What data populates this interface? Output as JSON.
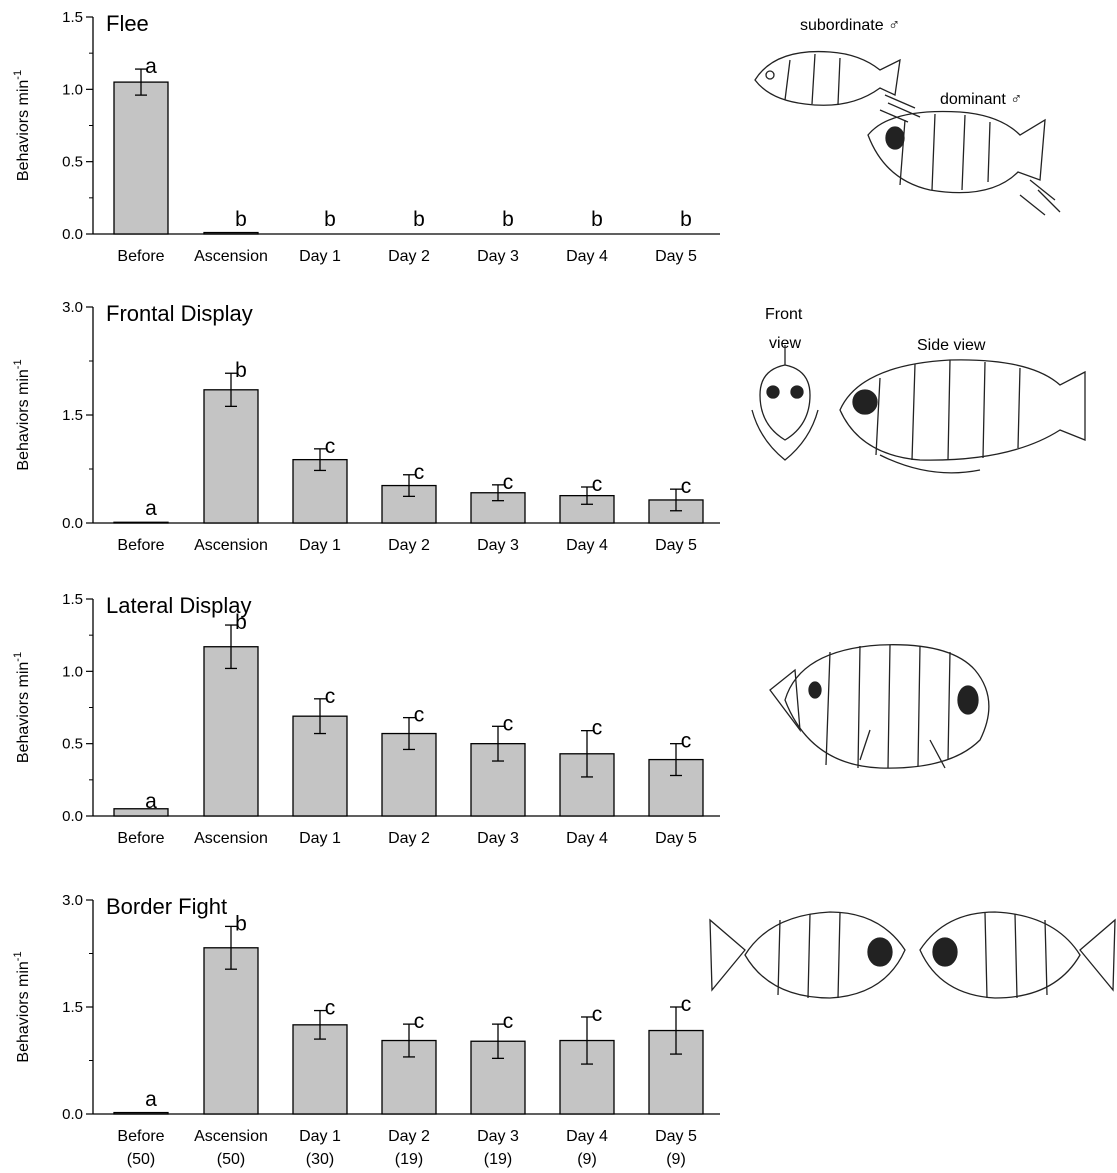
{
  "shared": {
    "ylabel": "Behaviors min",
    "ylabel_sup": "-1",
    "categories": [
      "Before",
      "Ascension",
      "Day 1",
      "Day 2",
      "Day 3",
      "Day 4",
      "Day 5"
    ],
    "sample_sizes": [
      "(50)",
      "(50)",
      "(30)",
      "(19)",
      "(19)",
      "(9)",
      "(9)"
    ]
  },
  "chart_data": [
    {
      "type": "bar",
      "title": "Flee",
      "categories": [
        "Before",
        "Ascension",
        "Day 1",
        "Day 2",
        "Day 3",
        "Day 4",
        "Day 5"
      ],
      "values": [
        1.05,
        0.01,
        0,
        0,
        0,
        0,
        0
      ],
      "errors": [
        0.09,
        0.005,
        0,
        0,
        0,
        0,
        0
      ],
      "letters": [
        "a",
        "b",
        "b",
        "b",
        "b",
        "b",
        "b"
      ],
      "ylim": [
        0,
        1.5
      ],
      "yticks": [
        "0.0",
        "0.5",
        "1.0",
        "1.5"
      ],
      "ytick_values": [
        0,
        0.5,
        1.0,
        1.5
      ],
      "ylabel": "Behaviors min-1",
      "grid": false,
      "bar_color": "#c4c4c4"
    },
    {
      "type": "bar",
      "title": "Frontal Display",
      "categories": [
        "Before",
        "Ascension",
        "Day 1",
        "Day 2",
        "Day 3",
        "Day 4",
        "Day 5"
      ],
      "values": [
        0.01,
        1.85,
        0.88,
        0.52,
        0.42,
        0.38,
        0.32
      ],
      "errors": [
        0.005,
        0.23,
        0.15,
        0.15,
        0.11,
        0.12,
        0.15
      ],
      "letters": [
        "a",
        "b",
        "c",
        "c",
        "c",
        "c",
        "c"
      ],
      "ylim": [
        0,
        3.0
      ],
      "yticks": [
        "0.0",
        "1.5",
        "3.0"
      ],
      "ytick_values": [
        0,
        1.5,
        3.0
      ],
      "ylabel": "Behaviors min-1",
      "grid": false,
      "bar_color": "#c4c4c4"
    },
    {
      "type": "bar",
      "title": "Lateral Display",
      "categories": [
        "Before",
        "Ascension",
        "Day 1",
        "Day 2",
        "Day 3",
        "Day 4",
        "Day 5"
      ],
      "values": [
        0.05,
        1.17,
        0.69,
        0.57,
        0.5,
        0.43,
        0.39
      ],
      "errors": [
        0.01,
        0.15,
        0.12,
        0.11,
        0.12,
        0.16,
        0.11
      ],
      "letters": [
        "a",
        "b",
        "c",
        "c",
        "c",
        "c",
        "c"
      ],
      "ylim": [
        0,
        1.5
      ],
      "yticks": [
        "0.0",
        "0.5",
        "1.0",
        "1.5"
      ],
      "ytick_values": [
        0,
        0.5,
        1.0,
        1.5
      ],
      "ylabel": "Behaviors min-1",
      "grid": false,
      "bar_color": "#c4c4c4"
    },
    {
      "type": "bar",
      "title": "Border Fight",
      "categories": [
        "Before",
        "Ascension",
        "Day 1",
        "Day 2",
        "Day 3",
        "Day 4",
        "Day 5"
      ],
      "values": [
        0.02,
        2.33,
        1.25,
        1.03,
        1.02,
        1.03,
        1.17
      ],
      "errors": [
        0.01,
        0.3,
        0.2,
        0.23,
        0.24,
        0.33,
        0.33
      ],
      "letters": [
        "a",
        "b",
        "c",
        "c",
        "c",
        "c",
        "c"
      ],
      "ylim": [
        0,
        3.0
      ],
      "yticks": [
        "0.0",
        "1.5",
        "3.0"
      ],
      "ytick_values": [
        0,
        1.5,
        3.0
      ],
      "ylabel": "Behaviors min-1",
      "grid": false,
      "bar_color": "#c4c4c4"
    }
  ],
  "illustrations": {
    "flee": {
      "subordinate_label": "subordinate ♂",
      "dominant_label": "dominant ♂"
    },
    "frontal": {
      "front_view_line1": "Front",
      "front_view_line2": "view",
      "side_view_label": "Side view"
    }
  }
}
